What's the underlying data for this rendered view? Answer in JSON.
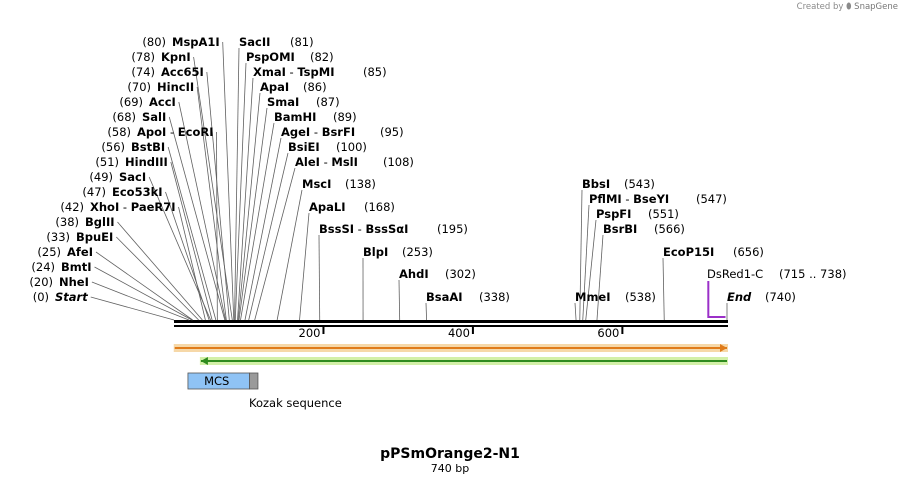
{
  "watermark": {
    "created_by": "Created by",
    "brand": "SnapGene"
  },
  "title": "pPSmOrange2-N1",
  "length": "740 bp",
  "sequence_length": 740,
  "ruler_ticks": [
    {
      "pos": 200,
      "label": "200"
    },
    {
      "pos": 400,
      "label": "400"
    },
    {
      "pos": 600,
      "label": "600"
    }
  ],
  "left_sites": [
    {
      "name": "MspA1I",
      "loc": "80",
      "pos": 80
    },
    {
      "name": "KpnI",
      "loc": "78",
      "pos": 78
    },
    {
      "name": "Acc65I",
      "loc": "74",
      "pos": 74
    },
    {
      "name": "HincII",
      "loc": "70",
      "pos": 70
    },
    {
      "name": "AccI",
      "loc": "69",
      "pos": 69
    },
    {
      "name": "SalI",
      "loc": "68",
      "pos": 68
    },
    {
      "name": "ApoI",
      "name2": "EcoRI",
      "loc": "58",
      "pos": 58
    },
    {
      "name": "BstBI",
      "loc": "56",
      "pos": 56
    },
    {
      "name": "HindIII",
      "loc": "51",
      "pos": 51
    },
    {
      "name": "SacI",
      "loc": "49",
      "pos": 49
    },
    {
      "name": "Eco53kI",
      "loc": "47",
      "pos": 47
    },
    {
      "name": "XhoI",
      "name2": "PaeR7I",
      "loc": "42",
      "pos": 42
    },
    {
      "name": "BglII",
      "loc": "38",
      "pos": 38
    },
    {
      "name": "BpuEI",
      "loc": "33",
      "pos": 33
    },
    {
      "name": "AfeI",
      "loc": "25",
      "pos": 25
    },
    {
      "name": "BmtI",
      "loc": "24",
      "pos": 24
    },
    {
      "name": "NheI",
      "loc": "20",
      "pos": 20
    },
    {
      "name": "Start",
      "loc": "0",
      "pos": 0,
      "italic": true
    }
  ],
  "right_sites": [
    {
      "name": "SacII",
      "loc": "81",
      "pos": 81
    },
    {
      "name": "PspOMI",
      "loc": "82",
      "pos": 82
    },
    {
      "name": "XmaI",
      "name2": "TspMI",
      "loc": "85",
      "pos": 85
    },
    {
      "name": "ApaI",
      "loc": "86",
      "pos": 86
    },
    {
      "name": "SmaI",
      "loc": "87",
      "pos": 87
    },
    {
      "name": "BamHI",
      "loc": "89",
      "pos": 89
    },
    {
      "name": "AgeI",
      "name2": "BsrFI",
      "loc": "95",
      "pos": 95
    },
    {
      "name": "BsiEI",
      "loc": "100",
      "pos": 100
    },
    {
      "name": "AleI",
      "name2": "MslI",
      "loc": "108",
      "pos": 108
    },
    {
      "name": "MscI",
      "loc": "138",
      "pos": 138
    },
    {
      "name": "ApaLI",
      "loc": "168",
      "pos": 168
    },
    {
      "name": "BssSI",
      "name2": "BssSαI",
      "loc": "195",
      "pos": 195
    },
    {
      "name": "BlpI",
      "loc": "253",
      "pos": 253
    },
    {
      "name": "AhdI",
      "loc": "302",
      "pos": 302
    },
    {
      "name": "BsaAI",
      "loc": "338",
      "pos": 338
    },
    {
      "name": "BbsI",
      "loc": "543",
      "pos": 543
    },
    {
      "name": "PflMI",
      "name2": "BseYI",
      "loc": "547",
      "pos": 547
    },
    {
      "name": "PspFI",
      "loc": "551",
      "pos": 551
    },
    {
      "name": "BsrBI",
      "loc": "566",
      "pos": 566
    },
    {
      "name": "MmeI",
      "loc": "538",
      "pos": 538
    },
    {
      "name": "EcoP15I",
      "loc": "656",
      "pos": 656
    },
    {
      "name": "End",
      "loc": "740",
      "pos": 740,
      "italic": true
    }
  ],
  "primer": {
    "name": "DsRed1-C",
    "range": "(715 .. 738)",
    "start": 715,
    "end": 738,
    "color": "#9b30c8"
  },
  "features": [
    {
      "name": "orange-arrow",
      "start": 1,
      "end": 740,
      "direction": "forward",
      "color": "#e07b1a"
    },
    {
      "name": "green-arrow",
      "start": 36,
      "end": 740,
      "direction": "reverse",
      "color": "#2e8b1e"
    }
  ],
  "mcs": {
    "label": "MCS",
    "start": 20,
    "end": 101,
    "color": "#8fc3f5"
  },
  "kozak": {
    "label": "Kozak sequence",
    "start": 101,
    "end": 111,
    "color": "#9a9a9a"
  },
  "colors": {
    "backbone": "#000000",
    "site_line": "#606060",
    "primer": "#9b30c8"
  }
}
